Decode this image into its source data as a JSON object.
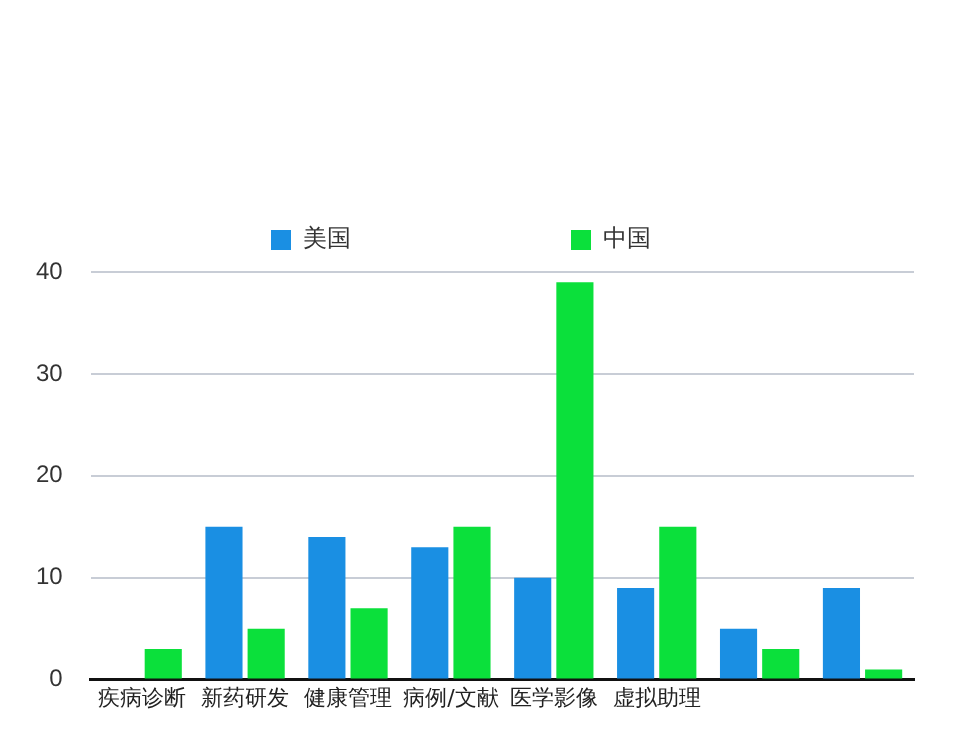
{
  "chart_data": {
    "type": "bar",
    "categories": [
      "疾病诊断",
      "新药研发",
      "健康管理",
      "病例/文献",
      "医学影像",
      "虚拟助理",
      null,
      null
    ],
    "series": [
      {
        "name": "美国",
        "color": "#1a8fe3",
        "values": [
          0,
          15,
          14,
          13,
          10,
          9,
          5,
          9
        ]
      },
      {
        "name": "中国",
        "color": "#0be03b",
        "values": [
          3,
          5,
          7,
          15,
          39,
          15,
          3,
          1
        ]
      }
    ],
    "ylim": [
      0,
      40
    ],
    "yticks": [
      0,
      10,
      20,
      30,
      40
    ],
    "grid": "y",
    "legend": "top"
  }
}
